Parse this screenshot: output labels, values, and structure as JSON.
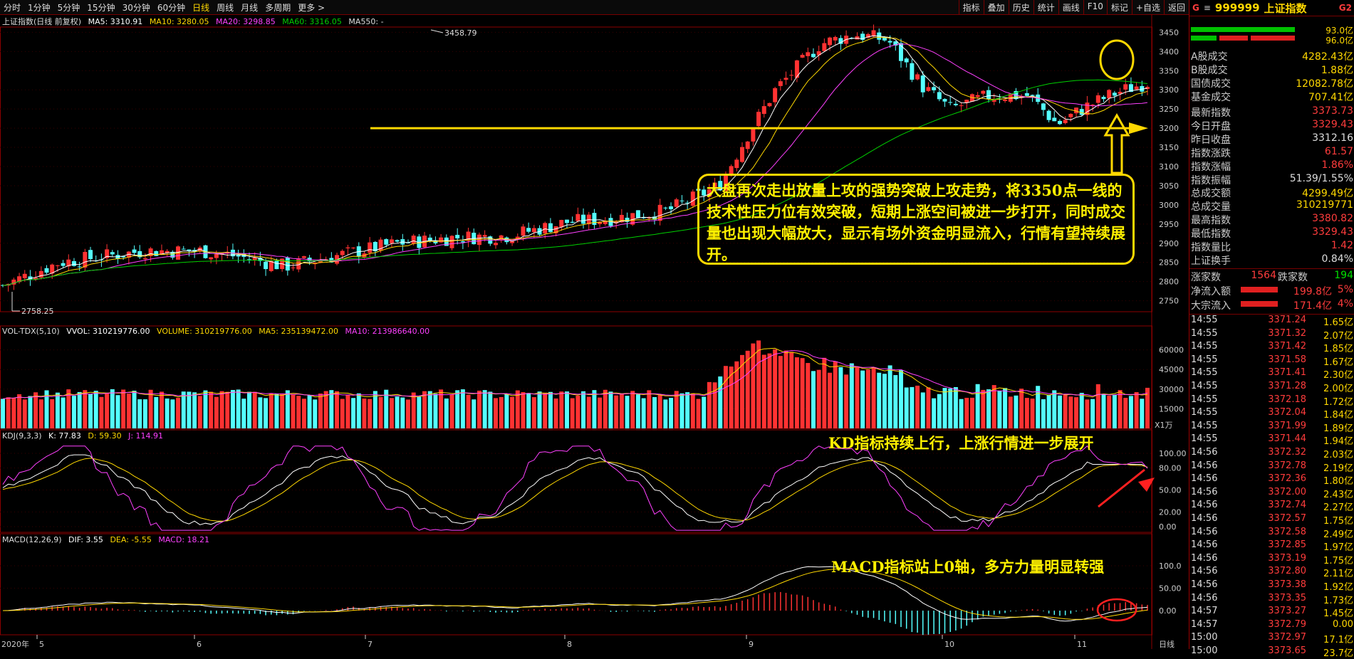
{
  "toolbar": {
    "periods": [
      "分时",
      "1分钟",
      "5分钟",
      "15分钟",
      "30分钟",
      "60分钟",
      "日线",
      "周线",
      "月线",
      "多周期",
      "更多 >"
    ],
    "active_period": "日线",
    "tools": [
      "指标",
      "叠加",
      "历史",
      "统计",
      "画线",
      "F10",
      "标记",
      "+自选",
      "返回"
    ]
  },
  "main_info": {
    "name": "上证指数(日线 前复权)",
    "ma5": "MA5: 3310.91",
    "ma10": "MA10: 3280.05",
    "ma20": "MA20: 3298.85",
    "ma60": "MA60: 3316.05",
    "ma550": "MA550: -"
  },
  "vol_info": {
    "name": "VOL-TDX(5,10)",
    "vvol": "VVOL: 310219776.00",
    "volume": "VOLUME: 310219776.00",
    "ma5": "MA5: 235139472.00",
    "ma10": "MA10: 213986640.00"
  },
  "kdj_info": {
    "name": "KDJ(9,3,3)",
    "k": "K: 77.83",
    "d": "D: 59.30",
    "j": "J: 114.91"
  },
  "macd_info": {
    "name": "MACD(12,26,9)",
    "dif": "DIF: 3.55",
    "dea": "DEA: -5.55",
    "macd": "MACD: 18.21"
  },
  "price_axis": [
    "3450",
    "3400",
    "3350",
    "3300",
    "3250",
    "3200",
    "3150",
    "3100",
    "3050",
    "3000",
    "2950",
    "2900",
    "2850",
    "2800",
    "2750"
  ],
  "vol_axis": [
    "60000",
    "45000",
    "30000",
    "15000"
  ],
  "vol_unit": "X1万",
  "kdj_axis": [
    "100.00",
    "80.00",
    "50.00",
    "20.00",
    "0.00"
  ],
  "macd_axis": [
    "100.0",
    "50.00",
    "0.00"
  ],
  "x_labels": [
    "2020年",
    "5",
    "6",
    "7",
    "8",
    "9",
    "10",
    "11"
  ],
  "x_period_label": "日线",
  "chart_marks": {
    "high_label": "3458.79",
    "low_label": "2758.25"
  },
  "annotations": {
    "main": "大盘再次走出放量上攻的强势突破上攻走势，将3350点一线的技术性压力位有效突破，短期上涨空间被进一步打开，同时成交量也出现大幅放大，显示有场外资金明显流入，行情有望持续展开。",
    "kdj": "KD指标持续上行，上涨行情进一步展开",
    "macd": "MACD指标站上0轴，多方力量明显转强"
  },
  "colors": {
    "up": "#ff3232",
    "down": "#54ffff",
    "ma5": "#ffffff",
    "ma10": "#ffd800",
    "ma20": "#ff40ff",
    "ma60": "#00d000",
    "annotation": "#ffd800"
  },
  "chart_data": {
    "type": "candlestick",
    "title": "上证指数(日线 前复权)",
    "range_high": 3458.79,
    "range_low": 2758.25,
    "support_level": 3200,
    "last": {
      "open": 3329.43,
      "high": 3380.82,
      "low": 3329.43,
      "close": 3373.73,
      "prev_close": 3312.16
    }
  },
  "right_panel": {
    "code": "999999",
    "name": "上证指数",
    "tag_g": "G",
    "tag_g2": "G2",
    "bar1": "93.0亿",
    "bar2": "96.0亿",
    "stats1": [
      {
        "label": "A股成交",
        "value": "4282.43亿",
        "color": "#ffd800"
      },
      {
        "label": "B股成交",
        "value": "1.88亿",
        "color": "#ffd800"
      },
      {
        "label": "国债成交",
        "value": "12082.78亿",
        "color": "#ffd800"
      },
      {
        "label": "基金成交",
        "value": "707.41亿",
        "color": "#ffd800"
      }
    ],
    "stats2": [
      {
        "label": "最新指数",
        "value": "3373.73",
        "color": "#ff3c3c"
      },
      {
        "label": "今日开盘",
        "value": "3329.43",
        "color": "#ff3c3c"
      },
      {
        "label": "昨日收盘",
        "value": "3312.16",
        "color": "#dddddd"
      },
      {
        "label": "指数涨跌",
        "value": "61.57",
        "color": "#ff3c3c"
      },
      {
        "label": "指数涨幅",
        "value": "1.86%",
        "color": "#ff3c3c"
      },
      {
        "label": "指数振幅",
        "value": "51.39/1.55%",
        "color": "#dddddd"
      },
      {
        "label": "总成交额",
        "value": "4299.49亿",
        "color": "#ffd800"
      },
      {
        "label": "总成交量",
        "value": "310219771",
        "color": "#ffd800"
      },
      {
        "label": "最高指数",
        "value": "3380.82",
        "color": "#ff3c3c"
      },
      {
        "label": "最低指数",
        "value": "3329.43",
        "color": "#ff3c3c"
      },
      {
        "label": "指数量比",
        "value": "1.42",
        "color": "#ff3c3c"
      },
      {
        "label": "上证换手",
        "value": "0.84%",
        "color": "#dddddd"
      }
    ],
    "up_label": "涨家数",
    "up_count": "1564",
    "down_label": "跌家数",
    "down_count": "194",
    "net_inflow_label": "净流入额",
    "net_inflow": "199.8亿",
    "net_inflow_pct": "5%",
    "block_inflow_label": "大宗流入",
    "block_inflow": "171.4亿",
    "block_inflow_pct": "4%",
    "ticks": [
      [
        "14:55",
        "3371.24",
        "1.65亿"
      ],
      [
        "14:55",
        "3371.32",
        "2.07亿"
      ],
      [
        "14:55",
        "3371.42",
        "1.85亿"
      ],
      [
        "14:55",
        "3371.58",
        "1.67亿"
      ],
      [
        "14:55",
        "3371.41",
        "2.30亿"
      ],
      [
        "14:55",
        "3371.28",
        "2.00亿"
      ],
      [
        "14:55",
        "3372.18",
        "1.72亿"
      ],
      [
        "14:55",
        "3372.04",
        "1.84亿"
      ],
      [
        "14:55",
        "3371.99",
        "1.89亿"
      ],
      [
        "14:55",
        "3371.44",
        "1.94亿"
      ],
      [
        "14:56",
        "3372.32",
        "2.03亿"
      ],
      [
        "14:56",
        "3372.78",
        "2.19亿"
      ],
      [
        "14:56",
        "3372.36",
        "1.80亿"
      ],
      [
        "14:56",
        "3372.00",
        "2.43亿"
      ],
      [
        "14:56",
        "3372.74",
        "2.27亿"
      ],
      [
        "14:56",
        "3372.57",
        "1.75亿"
      ],
      [
        "14:56",
        "3372.58",
        "2.49亿"
      ],
      [
        "14:56",
        "3372.85",
        "1.97亿"
      ],
      [
        "14:56",
        "3373.19",
        "1.75亿"
      ],
      [
        "14:56",
        "3372.80",
        "2.11亿"
      ],
      [
        "14:56",
        "3373.38",
        "1.92亿"
      ],
      [
        "14:56",
        "3373.35",
        "1.73亿"
      ],
      [
        "14:57",
        "3373.27",
        "1.45亿"
      ],
      [
        "14:57",
        "3372.79",
        "0.00"
      ],
      [
        "15:00",
        "3372.97",
        "17.1亿"
      ],
      [
        "15:00",
        "3373.65",
        "23.7亿"
      ]
    ]
  }
}
